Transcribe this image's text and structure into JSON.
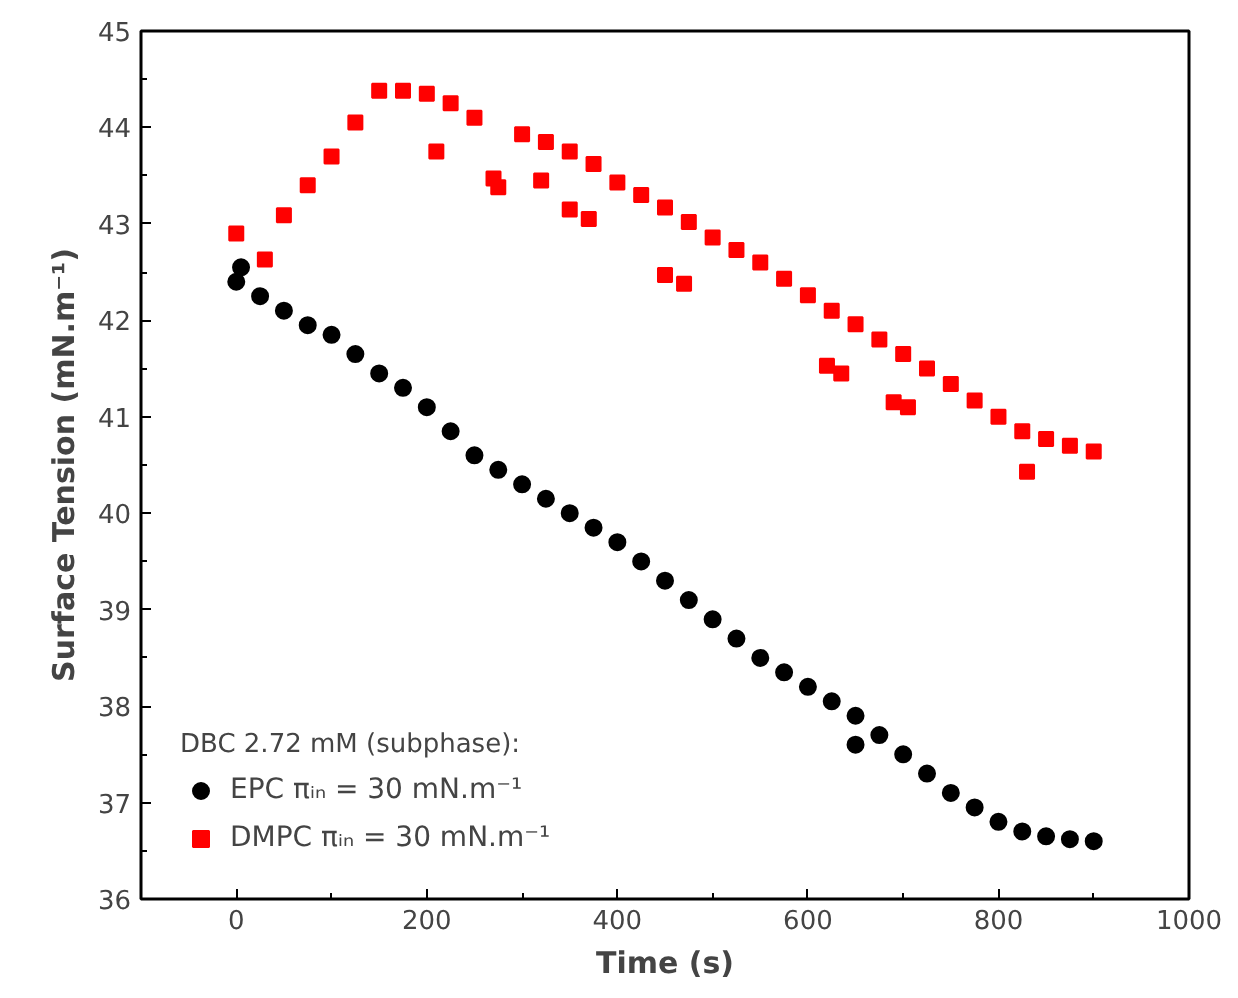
{
  "chart_data": {
    "type": "scatter",
    "xlabel": "Time (s)",
    "ylabel": "Surface Tension (mN.m⁻¹)",
    "xlim": [
      -100,
      1000
    ],
    "xticks": [
      0,
      200,
      400,
      600,
      800,
      1000
    ],
    "ylim": [
      36,
      45
    ],
    "yticks": [
      36,
      37,
      38,
      39,
      40,
      41,
      42,
      43,
      44,
      45
    ],
    "grid": false,
    "legend": "bottom left",
    "legend_title": "DBC 2.72 mM (subphase):",
    "series": [
      {
        "name": "EPC πᵢₙ = 30 mN.m⁻¹",
        "color": "#000000",
        "marker": "circle",
        "x": [
          0,
          5,
          25,
          50,
          75,
          100,
          125,
          150,
          175,
          200,
          225,
          250,
          275,
          300,
          325,
          350,
          375,
          400,
          425,
          450,
          475,
          500,
          525,
          550,
          575,
          600,
          625,
          650,
          650,
          675,
          700,
          725,
          750,
          775,
          800,
          825,
          850,
          875,
          900
        ],
        "values": [
          42.4,
          42.55,
          42.25,
          42.1,
          41.95,
          41.85,
          41.65,
          41.45,
          41.3,
          41.1,
          40.85,
          40.6,
          40.45,
          40.3,
          40.15,
          40.0,
          39.85,
          39.7,
          39.5,
          39.3,
          39.1,
          38.9,
          38.7,
          38.5,
          38.35,
          38.2,
          38.05,
          37.9,
          37.6,
          37.7,
          37.5,
          37.3,
          37.1,
          36.95,
          36.8,
          36.7,
          36.65,
          36.62,
          36.6
        ]
      },
      {
        "name": "DMPC πᵢₙ = 30 mN.m⁻¹",
        "color": "#ff0000",
        "marker": "square",
        "x": [
          0,
          30,
          50,
          75,
          100,
          125,
          150,
          175,
          200,
          210,
          225,
          250,
          270,
          275,
          300,
          320,
          325,
          350,
          350,
          370,
          375,
          400,
          425,
          450,
          450,
          470,
          475,
          500,
          525,
          550,
          575,
          600,
          620,
          625,
          635,
          650,
          675,
          690,
          700,
          705,
          725,
          750,
          775,
          800,
          825,
          830,
          850,
          875,
          900
        ],
        "values": [
          42.9,
          42.63,
          43.09,
          43.4,
          43.7,
          44.05,
          44.38,
          44.38,
          44.35,
          43.75,
          44.25,
          44.1,
          43.47,
          43.38,
          43.93,
          43.45,
          43.85,
          43.75,
          43.15,
          43.05,
          43.62,
          43.43,
          43.3,
          43.17,
          42.47,
          42.38,
          43.02,
          42.86,
          42.73,
          42.6,
          42.43,
          42.26,
          41.53,
          42.1,
          41.45,
          41.96,
          41.8,
          41.15,
          41.65,
          41.1,
          41.5,
          41.34,
          41.17,
          41.0,
          40.85,
          40.43,
          40.77,
          40.7,
          40.64
        ]
      }
    ]
  }
}
